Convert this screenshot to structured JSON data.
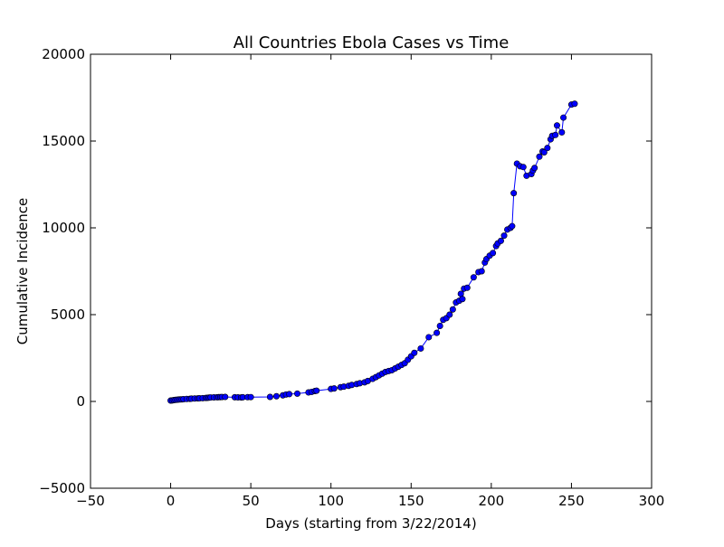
{
  "chart_data": {
    "type": "line",
    "title": "All Countries Ebola Cases vs Time",
    "xlabel": "Days (starting from 3/22/2014)",
    "ylabel": "Cumulative Incidence",
    "xlim": [
      -50,
      300
    ],
    "ylim": [
      -5000,
      20000
    ],
    "xticks": [
      -50,
      0,
      50,
      100,
      150,
      200,
      250,
      300
    ],
    "yticks": [
      -5000,
      0,
      5000,
      10000,
      15000,
      20000
    ],
    "grid": false,
    "legend": "none",
    "line_color": "#0000ff",
    "marker_color": "#0000ff",
    "series": [
      {
        "x": [
          0,
          1,
          2,
          3,
          4,
          5,
          6,
          7,
          8,
          10,
          12,
          13,
          15,
          17,
          18,
          20,
          22,
          23,
          24,
          25,
          27,
          29,
          30,
          31,
          32,
          34,
          40,
          42,
          44,
          45,
          48,
          50,
          62,
          66,
          70,
          72,
          74,
          79,
          86,
          88,
          90,
          91,
          100,
          102,
          106,
          108,
          111,
          113,
          116,
          118,
          121,
          123,
          126,
          128,
          130,
          132,
          134,
          136,
          138,
          140,
          142,
          144,
          146,
          148,
          150,
          152,
          156,
          161,
          166,
          168,
          170,
          172,
          174,
          176,
          178,
          180,
          181,
          182,
          183,
          185,
          189,
          192,
          194,
          196,
          197,
          199,
          201,
          203,
          204,
          206,
          208,
          210,
          212,
          213,
          214,
          216,
          218,
          220,
          222,
          225,
          226,
          227,
          230,
          232,
          233,
          235,
          237,
          238,
          240,
          241,
          244,
          245,
          250,
          252
        ],
        "y": [
          49,
          60,
          80,
          90,
          100,
          110,
          115,
          120,
          130,
          140,
          150,
          160,
          170,
          175,
          180,
          190,
          200,
          210,
          220,
          230,
          235,
          240,
          245,
          250,
          255,
          260,
          240,
          235,
          230,
          240,
          245,
          250,
          260,
          300,
          350,
          400,
          420,
          450,
          520,
          550,
          600,
          620,
          720,
          750,
          820,
          850,
          900,
          950,
          1000,
          1050,
          1100,
          1180,
          1300,
          1400,
          1500,
          1600,
          1700,
          1750,
          1800,
          1900,
          2000,
          2100,
          2200,
          2400,
          2600,
          2800,
          3050,
          3700,
          3950,
          4350,
          4700,
          4800,
          5000,
          5300,
          5700,
          5800,
          6200,
          5900,
          6500,
          6550,
          7150,
          7450,
          7500,
          8000,
          8200,
          8400,
          8550,
          8950,
          9100,
          9250,
          9550,
          9900,
          10000,
          10100,
          12000,
          13700,
          13550,
          13500,
          13000,
          13100,
          13300,
          13450,
          14100,
          14400,
          14350,
          14600,
          15100,
          15300,
          15350,
          15900,
          15500,
          16350,
          17100,
          17150
        ]
      }
    ]
  }
}
